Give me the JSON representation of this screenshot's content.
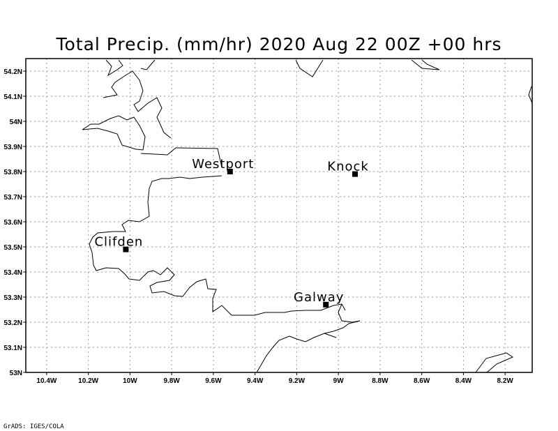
{
  "title": "Total Precip. (mm/hr) 2020 Aug 22 00Z +00 hrs",
  "credit": "GrADS: IGES/COLA",
  "lon_range": [
    -10.5,
    -8.07
  ],
  "lat_range": [
    53.0,
    54.25
  ],
  "lon_ticks": [
    {
      "value": -10.4,
      "label": "10.4W"
    },
    {
      "value": -10.2,
      "label": "10.2W"
    },
    {
      "value": -10.0,
      "label": "10W"
    },
    {
      "value": -9.8,
      "label": "9.8W"
    },
    {
      "value": -9.6,
      "label": "9.6W"
    },
    {
      "value": -9.4,
      "label": "9.4W"
    },
    {
      "value": -9.2,
      "label": "9.2W"
    },
    {
      "value": -9.0,
      "label": "9W"
    },
    {
      "value": -8.8,
      "label": "8.8W"
    },
    {
      "value": -8.6,
      "label": "8.6W"
    },
    {
      "value": -8.4,
      "label": "8.4W"
    },
    {
      "value": -8.2,
      "label": "8.2W"
    }
  ],
  "lat_ticks": [
    {
      "value": 53.0,
      "label": "53N"
    },
    {
      "value": 53.1,
      "label": "53.1N"
    },
    {
      "value": 53.2,
      "label": "53.2N"
    },
    {
      "value": 53.3,
      "label": "53.3N"
    },
    {
      "value": 53.4,
      "label": "53.4N"
    },
    {
      "value": 53.5,
      "label": "53.5N"
    },
    {
      "value": 53.6,
      "label": "53.6N"
    },
    {
      "value": 53.7,
      "label": "53.7N"
    },
    {
      "value": 53.8,
      "label": "53.8N"
    },
    {
      "value": 53.9,
      "label": "53.9N"
    },
    {
      "value": 54.0,
      "label": "54N"
    },
    {
      "value": 54.1,
      "label": "54.1N"
    },
    {
      "value": 54.2,
      "label": "54.2N"
    }
  ],
  "cities": [
    {
      "name": "Westport",
      "lon": -9.52,
      "lat": 53.8
    },
    {
      "name": "Knock",
      "lon": -8.92,
      "lat": 53.79
    },
    {
      "name": "Clifden",
      "lon": -10.02,
      "lat": 53.49
    },
    {
      "name": "Galway",
      "lon": -9.06,
      "lat": 53.27
    }
  ]
}
